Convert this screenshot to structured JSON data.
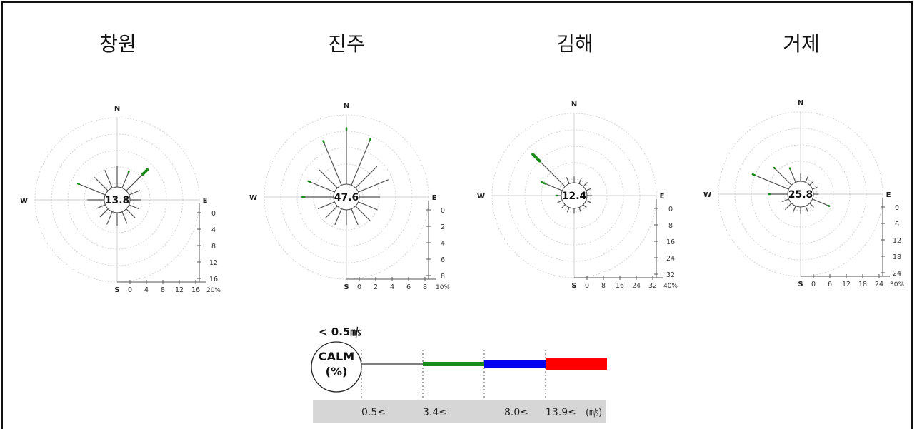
{
  "chart_data": [
    {
      "type": "wind-rose",
      "title": "창원",
      "calm": "13.8",
      "directions": [
        "N",
        "E",
        "S",
        "W"
      ],
      "radial_ticks": [
        "0",
        "4",
        "8",
        "12",
        "16"
      ],
      "radial_unit": "20%",
      "rmax": 20,
      "petals": [
        {
          "deg": 0,
          "total": 6.0,
          "green": 0
        },
        {
          "deg": 22.5,
          "total": 5.2,
          "green": 0.4
        },
        {
          "deg": 45,
          "total": 8.6,
          "green": 1.8
        },
        {
          "deg": 67.5,
          "total": 3.4,
          "green": 0
        },
        {
          "deg": 90,
          "total": 3.3,
          "green": 0
        },
        {
          "deg": 112.5,
          "total": 3.2,
          "green": 0
        },
        {
          "deg": 135,
          "total": 3.6,
          "green": 0
        },
        {
          "deg": 157.5,
          "total": 3.7,
          "green": 0
        },
        {
          "deg": 180,
          "total": 3.9,
          "green": 0
        },
        {
          "deg": 202.5,
          "total": 4.0,
          "green": 0
        },
        {
          "deg": 225,
          "total": 3.3,
          "green": 0
        },
        {
          "deg": 247.5,
          "total": 2.7,
          "green": 0
        },
        {
          "deg": 270,
          "total": 4.9,
          "green": 0
        },
        {
          "deg": 292.5,
          "total": 8.5,
          "green": 0.3
        },
        {
          "deg": 315,
          "total": 5.5,
          "green": 0
        },
        {
          "deg": 337.5,
          "total": 5.6,
          "green": 0
        }
      ]
    },
    {
      "type": "wind-rose",
      "title": "진주",
      "calm": "47.6",
      "directions": [
        "N",
        "E",
        "S",
        "W"
      ],
      "radial_ticks": [
        "0",
        "2",
        "4",
        "6",
        "8"
      ],
      "radial_unit": "10%",
      "rmax": 10,
      "petals": [
        {
          "deg": 0,
          "total": 8.1,
          "green": 0.3
        },
        {
          "deg": 22.5,
          "total": 7.2,
          "green": 0.1
        },
        {
          "deg": 45,
          "total": 4.4,
          "green": 0
        },
        {
          "deg": 67.5,
          "total": 4.7,
          "green": 0
        },
        {
          "deg": 90,
          "total": 3.0,
          "green": 0
        },
        {
          "deg": 112.5,
          "total": 3.0,
          "green": 0
        },
        {
          "deg": 135,
          "total": 3.1,
          "green": 0
        },
        {
          "deg": 157.5,
          "total": 2.5,
          "green": 0
        },
        {
          "deg": 180,
          "total": 2.2,
          "green": 0
        },
        {
          "deg": 202.5,
          "total": 2.5,
          "green": 0
        },
        {
          "deg": 225,
          "total": 2.5,
          "green": 0
        },
        {
          "deg": 247.5,
          "total": 2.6,
          "green": 0
        },
        {
          "deg": 270,
          "total": 4.5,
          "green": 0.3
        },
        {
          "deg": 292.5,
          "total": 4.1,
          "green": 0.3
        },
        {
          "deg": 315,
          "total": 3.8,
          "green": 0
        },
        {
          "deg": 337.5,
          "total": 6.9,
          "green": 0.3
        }
      ]
    },
    {
      "type": "wind-rose",
      "title": "김해",
      "calm": "12.4",
      "directions": [
        "N",
        "E",
        "S",
        "W"
      ],
      "radial_ticks": [
        "0",
        "8",
        "16",
        "24",
        "32"
      ],
      "radial_unit": "40%",
      "rmax": 40,
      "petals": [
        {
          "deg": 0,
          "total": 3.6,
          "green": 0
        },
        {
          "deg": 22.5,
          "total": 3.6,
          "green": 0
        },
        {
          "deg": 45,
          "total": 3.4,
          "green": 0
        },
        {
          "deg": 67.5,
          "total": 3.0,
          "green": 0
        },
        {
          "deg": 90,
          "total": 3.0,
          "green": 0
        },
        {
          "deg": 112.5,
          "total": 3.0,
          "green": 0
        },
        {
          "deg": 135,
          "total": 3.0,
          "green": 0
        },
        {
          "deg": 157.5,
          "total": 3.0,
          "green": 0
        },
        {
          "deg": 180,
          "total": 3.0,
          "green": 0
        },
        {
          "deg": 202.5,
          "total": 3.0,
          "green": 0
        },
        {
          "deg": 225,
          "total": 3.0,
          "green": 0
        },
        {
          "deg": 247.5,
          "total": 3.0,
          "green": 0
        },
        {
          "deg": 270,
          "total": 3.0,
          "green": 0.5
        },
        {
          "deg": 292.5,
          "total": 13.1,
          "green": 2.7
        },
        {
          "deg": 315,
          "total": 26.3,
          "green": 5.5
        },
        {
          "deg": 337.5,
          "total": 4.0,
          "green": 0
        }
      ]
    },
    {
      "type": "wind-rose",
      "title": "거제",
      "calm": "25.8",
      "directions": [
        "N",
        "E",
        "S",
        "W"
      ],
      "radial_ticks": [
        "0",
        "6",
        "12",
        "18",
        "24"
      ],
      "radial_unit": "30%",
      "rmax": 30,
      "petals": [
        {
          "deg": 0,
          "total": 3.3,
          "green": 0
        },
        {
          "deg": 22.5,
          "total": 2.7,
          "green": 0
        },
        {
          "deg": 45,
          "total": 2.3,
          "green": 0
        },
        {
          "deg": 67.5,
          "total": 2.3,
          "green": 0
        },
        {
          "deg": 90,
          "total": 2.3,
          "green": 0
        },
        {
          "deg": 112.5,
          "total": 7.9,
          "green": 0.3
        },
        {
          "deg": 135,
          "total": 2.5,
          "green": 0
        },
        {
          "deg": 157.5,
          "total": 2.8,
          "green": 0
        },
        {
          "deg": 180,
          "total": 3.0,
          "green": 0
        },
        {
          "deg": 202.5,
          "total": 3.0,
          "green": 0
        },
        {
          "deg": 225,
          "total": 3.9,
          "green": 0
        },
        {
          "deg": 247.5,
          "total": 3.0,
          "green": 0
        },
        {
          "deg": 270,
          "total": 8.0,
          "green": 0.3
        },
        {
          "deg": 292.5,
          "total": 16.9,
          "green": 1.0
        },
        {
          "deg": 315,
          "total": 10.6,
          "green": 0.5
        },
        {
          "deg": 337.5,
          "total": 6.6,
          "green": 0.3
        }
      ]
    }
  ],
  "legend": {
    "calm_threshold": "< 0.5㎧",
    "calm_label": "CALM",
    "calm_unit": "(%)",
    "bins": [
      {
        "label": "0.5≤",
        "color": "#555555"
      },
      {
        "label": "3.4≤",
        "color": "#1a8a1a"
      },
      {
        "label": "8.0≤",
        "color": "#0000ee"
      },
      {
        "label": "13.9≤",
        "color": "#ff0000"
      }
    ],
    "unit": "(㎧)"
  }
}
